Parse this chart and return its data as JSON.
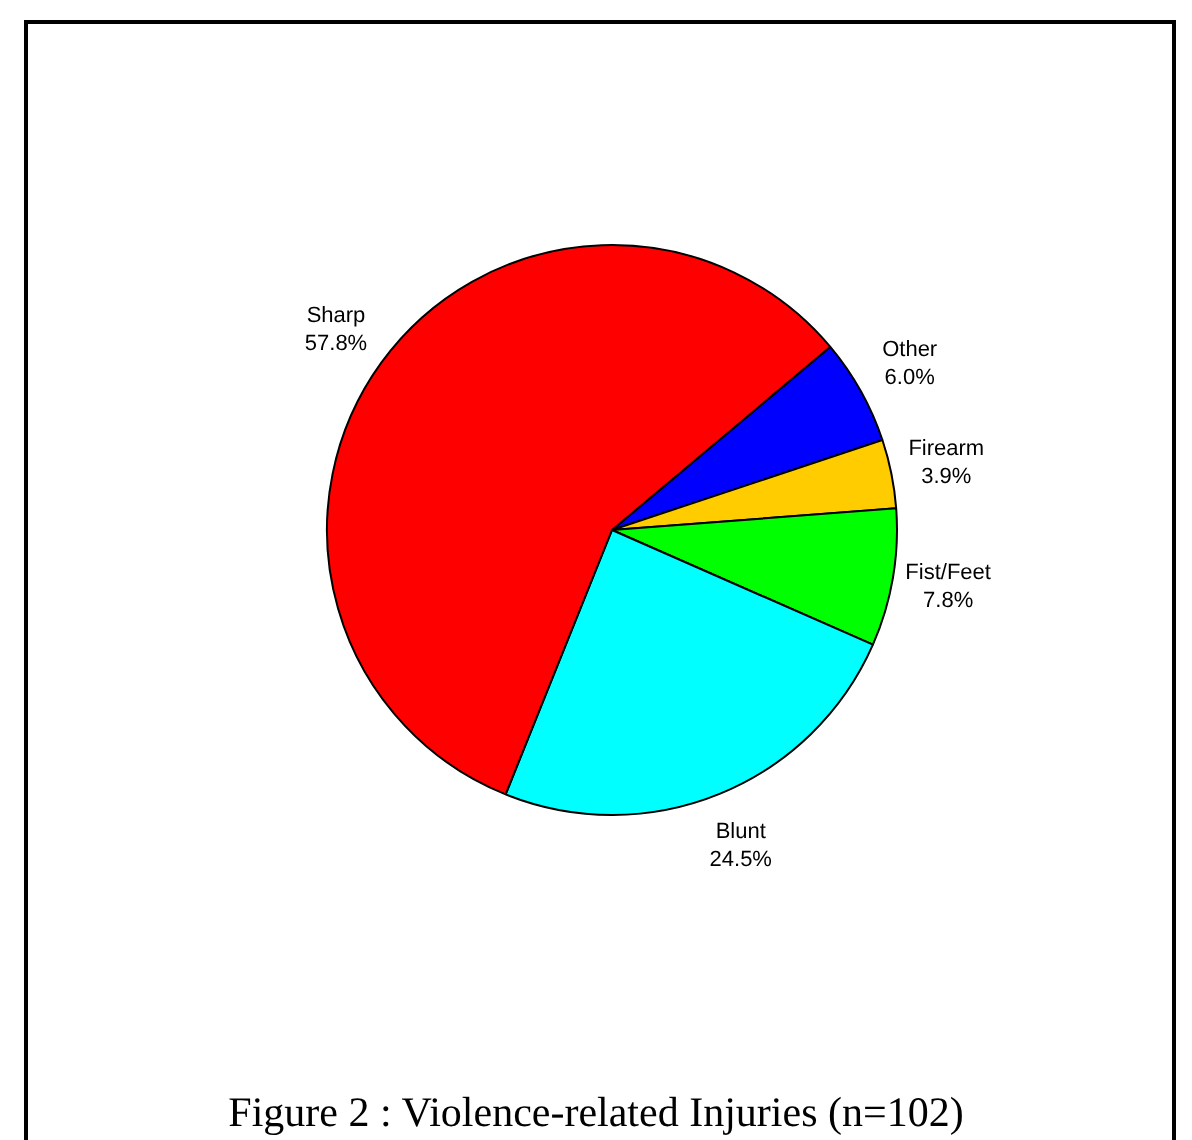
{
  "chart_data": {
    "type": "pie",
    "title": "Figure 2 : Violence-related Injuries (n=102)",
    "categories": [
      "Other",
      "Firearm",
      "Fist/Feet",
      "Blunt",
      "Sharp"
    ],
    "values": [
      6.0,
      3.9,
      7.8,
      24.5,
      57.8
    ],
    "colors": [
      "#0000ff",
      "#ffcc00",
      "#00ff00",
      "#00ffff",
      "#ff0000"
    ],
    "value_labels": [
      "6.0%",
      "3.9%",
      "7.8%",
      "24.5%",
      "57.8%"
    ],
    "legend": false
  }
}
